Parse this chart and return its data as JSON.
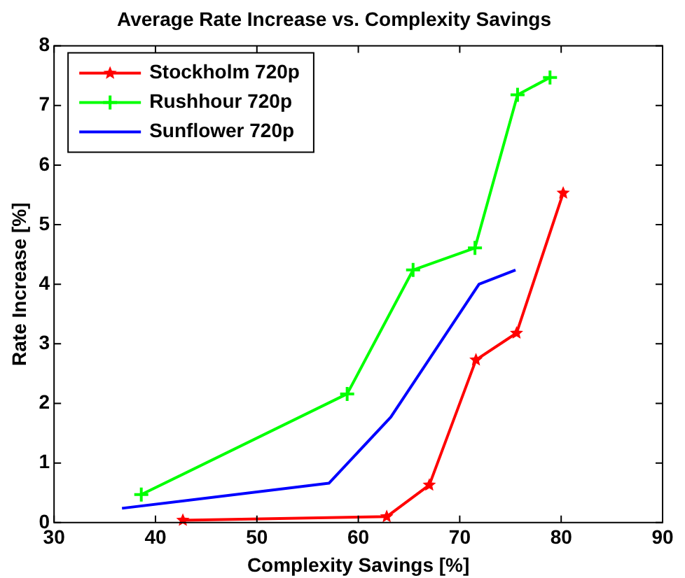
{
  "chart_data": {
    "type": "line",
    "title": "Average Rate Increase vs. Complexity Savings",
    "xlabel": "Complexity Savings [%]",
    "ylabel": "Rate Increase [%]",
    "xlim": [
      30,
      90
    ],
    "xticks": [
      30,
      40,
      50,
      60,
      70,
      80,
      90
    ],
    "ylim": [
      0,
      8
    ],
    "yticks": [
      0,
      1,
      2,
      3,
      4,
      5,
      6,
      7,
      8
    ],
    "grid": false,
    "legend": "top left",
    "line_style": "solid",
    "series": [
      {
        "name": "Stockholm 720p",
        "color": "#ff0000",
        "marker": "star",
        "x": [
          42.7,
          62.8,
          67.0,
          71.6,
          75.6,
          80.2
        ],
        "values": [
          0.04,
          0.1,
          0.63,
          2.73,
          3.18,
          5.53
        ]
      },
      {
        "name": "Rushhour 720p",
        "color": "#00ff00",
        "marker": "cross",
        "x": [
          38.6,
          58.9,
          65.4,
          71.5,
          75.7,
          78.9
        ],
        "values": [
          0.47,
          2.16,
          4.24,
          4.61,
          7.18,
          7.47
        ]
      },
      {
        "name": "Sunflower 720p",
        "color": "#0000ff",
        "marker": "none",
        "x": [
          36.7,
          57.1,
          63.2,
          71.9,
          75.5
        ],
        "values": [
          0.24,
          0.66,
          1.77,
          4.0,
          4.24
        ]
      }
    ]
  }
}
